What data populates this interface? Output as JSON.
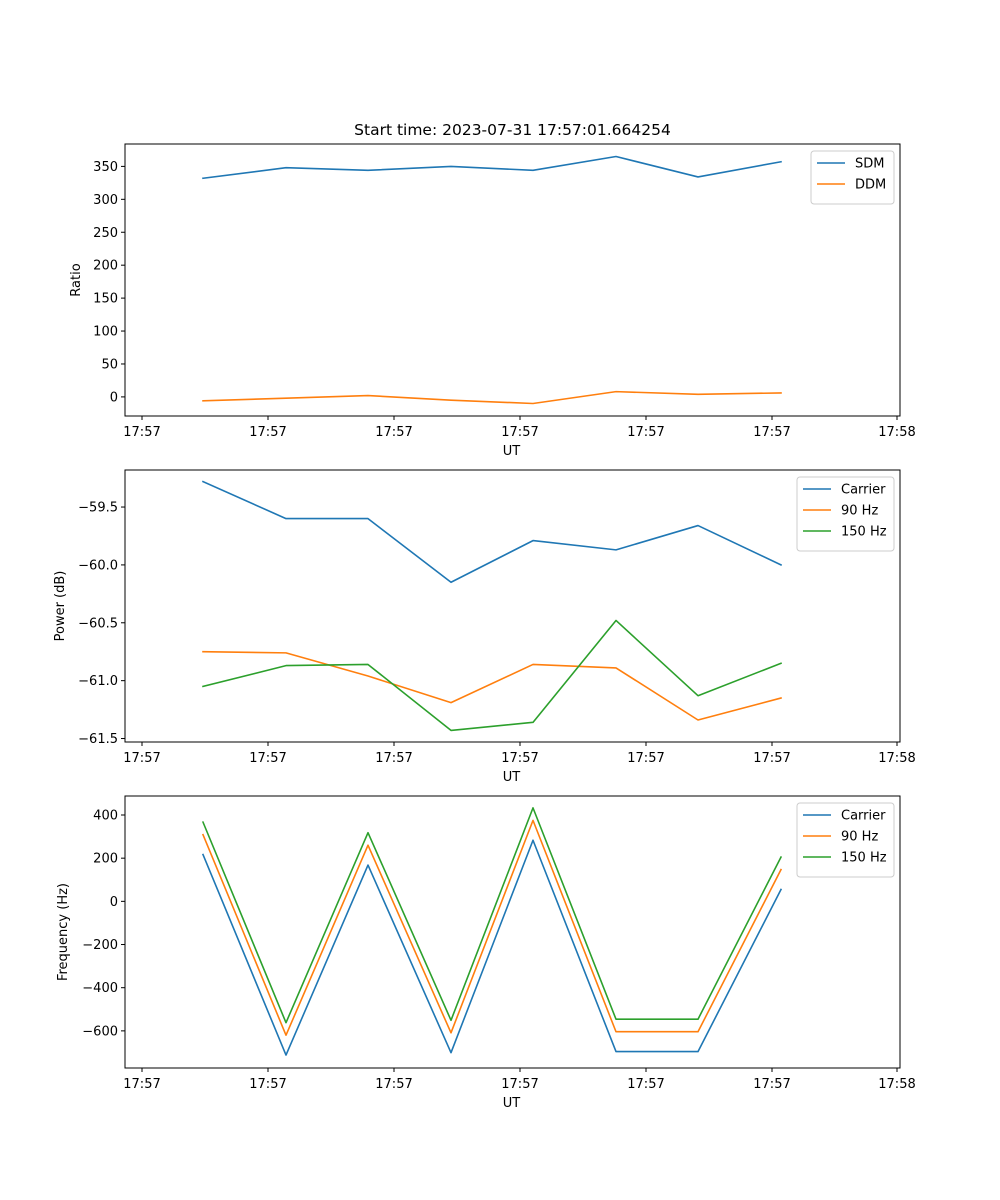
{
  "chart_data": [
    {
      "type": "line",
      "title": "Start time: 2023-07-31 17:57:01.664254",
      "xlabel": "UT",
      "ylabel": "Ratio",
      "x_tick_labels": [
        "17:57",
        "17:57",
        "17:57",
        "17:57",
        "17:57",
        "17:57",
        "17:57"
      ],
      "x_tick_labels_right": "17:58",
      "ylim": [
        -29,
        384
      ],
      "yticks": [
        0,
        50,
        100,
        150,
        200,
        250,
        300,
        350
      ],
      "ytick_labels": [
        "0",
        "50",
        "100",
        "150",
        "200",
        "250",
        "300",
        "350"
      ],
      "legend": "upper-right",
      "series": [
        {
          "name": "SDM",
          "color": "#1f77b4",
          "values": [
            332,
            348,
            344,
            350,
            344,
            365,
            334,
            357
          ]
        },
        {
          "name": "DDM",
          "color": "#ff7f0e",
          "values": [
            -6,
            -2,
            2,
            -5,
            -10,
            8,
            4,
            6
          ]
        }
      ]
    },
    {
      "type": "line",
      "title": "",
      "xlabel": "UT",
      "ylabel": "Power (dB)",
      "x_tick_labels": [
        "17:57",
        "17:57",
        "17:57",
        "17:57",
        "17:57",
        "17:57",
        "17:57"
      ],
      "x_tick_labels_right": "17:58",
      "ylim": [
        -61.53,
        -59.18
      ],
      "yticks": [
        -61.5,
        -61.0,
        -60.5,
        -60.0,
        -59.5
      ],
      "ytick_labels": [
        "−61.5",
        "−61.0",
        "−60.5",
        "−60.0",
        "−59.5"
      ],
      "legend": "upper-right",
      "series": [
        {
          "name": "Carrier",
          "color": "#1f77b4",
          "values": [
            -59.28,
            -59.6,
            -59.6,
            -60.15,
            -59.79,
            -59.87,
            -59.66,
            -60.0
          ]
        },
        {
          "name": "90 Hz",
          "color": "#ff7f0e",
          "values": [
            -60.75,
            -60.76,
            -60.96,
            -61.19,
            -60.86,
            -60.89,
            -61.34,
            -61.15
          ]
        },
        {
          "name": "150 Hz",
          "color": "#2ca02c",
          "values": [
            -61.05,
            -60.87,
            -60.86,
            -61.43,
            -61.36,
            -60.48,
            -61.13,
            -60.85
          ]
        }
      ]
    },
    {
      "type": "line",
      "title": "",
      "xlabel": "UT",
      "ylabel": "Frequency (Hz)",
      "x_tick_labels": [
        "17:57",
        "17:57",
        "17:57",
        "17:57",
        "17:57",
        "17:57",
        "17:57"
      ],
      "x_tick_labels_right": "17:58",
      "ylim": [
        -772,
        488
      ],
      "yticks": [
        -600,
        -400,
        -200,
        0,
        200,
        400
      ],
      "ytick_labels": [
        "−600",
        "−400",
        "−200",
        "0",
        "200",
        "400"
      ],
      "legend": "upper-right",
      "series": [
        {
          "name": "Carrier",
          "color": "#1f77b4",
          "values": [
            217,
            -712,
            168,
            -701,
            283,
            -696,
            -696,
            55
          ]
        },
        {
          "name": "90 Hz",
          "color": "#ff7f0e",
          "values": [
            309,
            -620,
            260,
            -609,
            375,
            -604,
            -604,
            147
          ]
        },
        {
          "name": "150 Hz",
          "color": "#2ca02c",
          "values": [
            367,
            -562,
            318,
            -551,
            433,
            -546,
            -546,
            205
          ]
        }
      ]
    }
  ]
}
